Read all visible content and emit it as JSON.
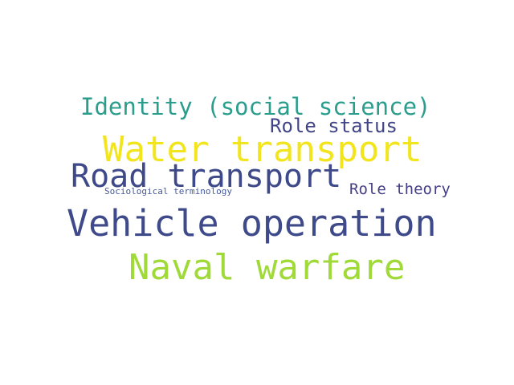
{
  "word_cloud": {
    "words": [
      {
        "text": "Identity (social science)",
        "color": "#2a9d8c"
      },
      {
        "text": "Role status",
        "color": "#414487"
      },
      {
        "text": "Water transport",
        "color": "#f2e51d"
      },
      {
        "text": "Road transport",
        "color": "#3e4989"
      },
      {
        "text": "Sociological terminology",
        "color": "#46599c"
      },
      {
        "text": "Role theory",
        "color": "#433e85"
      },
      {
        "text": "Vehicle operation",
        "color": "#3e4a89"
      },
      {
        "text": "Naval warfare",
        "color": "#a0da39"
      }
    ]
  }
}
